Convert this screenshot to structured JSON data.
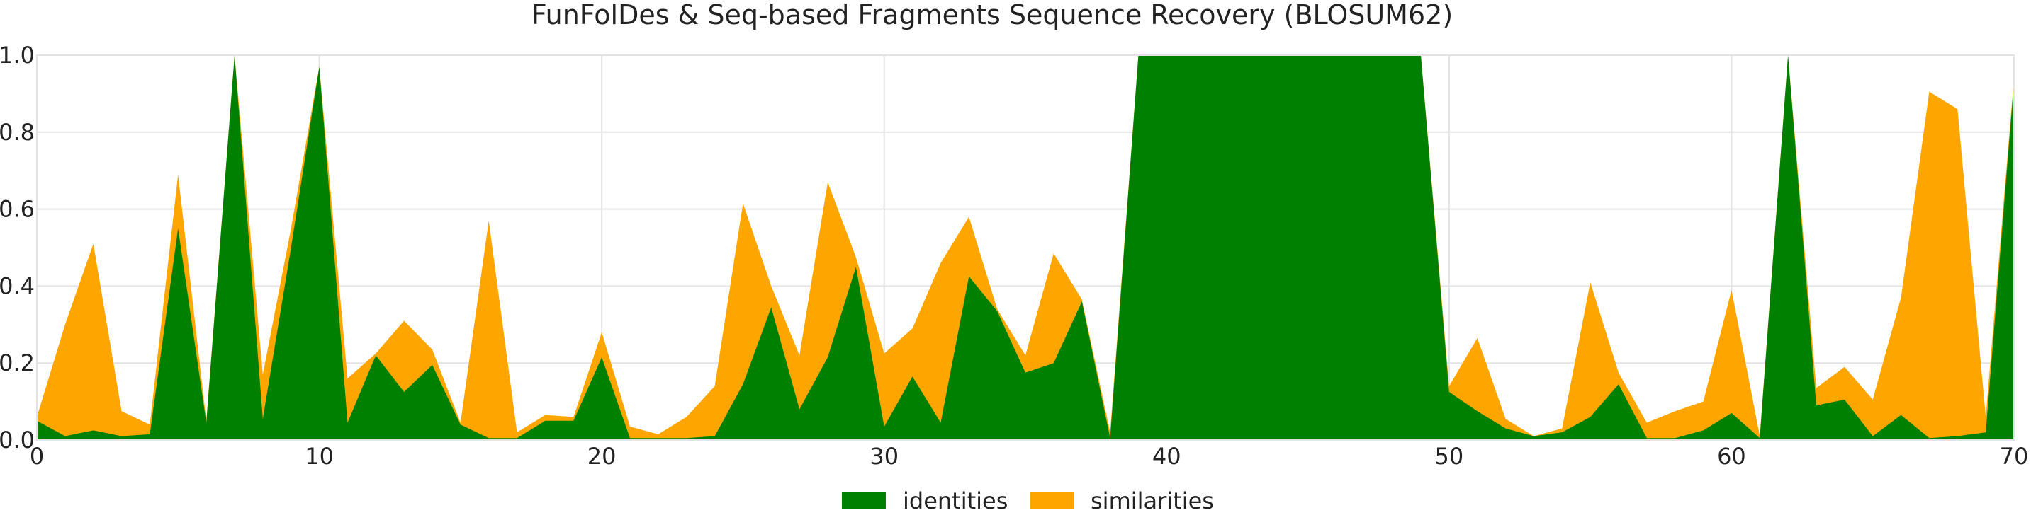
{
  "chart_data": {
    "type": "area",
    "title": "FunFolDes & Seq-based Fragments Sequence Recovery (BLOSUM62)",
    "xlabel": "",
    "ylabel": "",
    "xlim": [
      0,
      70
    ],
    "ylim": [
      0,
      1.0
    ],
    "x_ticks": [
      0,
      10,
      20,
      30,
      40,
      50,
      60,
      70
    ],
    "x_tick_labels": [
      "0",
      "10",
      "20",
      "30",
      "40",
      "50",
      "60",
      "70"
    ],
    "y_ticks": [
      0.0,
      0.2,
      0.4,
      0.6,
      0.8,
      1.0
    ],
    "y_tick_labels": [
      "0.0",
      "0.2",
      "0.4",
      "0.6",
      "0.8",
      "1.0"
    ],
    "grid": true,
    "legend_position": "bottom-center",
    "x": [
      0,
      1,
      2,
      3,
      4,
      5,
      6,
      7,
      8,
      9,
      10,
      11,
      12,
      13,
      14,
      15,
      16,
      17,
      18,
      19,
      20,
      21,
      22,
      23,
      24,
      25,
      26,
      27,
      28,
      29,
      30,
      31,
      32,
      33,
      34,
      35,
      36,
      37,
      38,
      39,
      40,
      41,
      42,
      43,
      44,
      45,
      46,
      47,
      48,
      49,
      50,
      51,
      52,
      53,
      54,
      55,
      56,
      57,
      58,
      59,
      60,
      61,
      62,
      63,
      64,
      65,
      66,
      67,
      68,
      69,
      70
    ],
    "series": [
      {
        "name": "similarities",
        "color": "#ffa500",
        "values": [
          0.06,
          0.3,
          0.51,
          0.075,
          0.04,
          0.69,
          0.05,
          1.0,
          0.17,
          0.55,
          0.97,
          0.16,
          0.225,
          0.31,
          0.235,
          0.045,
          0.57,
          0.02,
          0.065,
          0.06,
          0.28,
          0.035,
          0.015,
          0.06,
          0.14,
          0.615,
          0.4,
          0.22,
          0.67,
          0.475,
          0.225,
          0.29,
          0.46,
          0.58,
          0.34,
          0.22,
          0.485,
          0.365,
          0.02,
          1.0,
          1.0,
          1.0,
          1.0,
          1.0,
          1.0,
          1.0,
          1.0,
          1.0,
          1.0,
          1.0,
          0.14,
          0.265,
          0.055,
          0.01,
          0.03,
          0.41,
          0.175,
          0.045,
          0.075,
          0.1,
          0.39,
          0.01,
          1.0,
          0.135,
          0.19,
          0.105,
          0.37,
          0.905,
          0.86,
          0.06,
          0.94
        ]
      },
      {
        "name": "identities",
        "color": "#008000",
        "values": [
          0.05,
          0.01,
          0.025,
          0.01,
          0.015,
          0.55,
          0.045,
          1.0,
          0.055,
          0.5,
          0.97,
          0.045,
          0.22,
          0.125,
          0.195,
          0.04,
          0.005,
          0.005,
          0.05,
          0.05,
          0.215,
          0.005,
          0.005,
          0.005,
          0.01,
          0.145,
          0.345,
          0.08,
          0.215,
          0.45,
          0.035,
          0.165,
          0.045,
          0.425,
          0.335,
          0.175,
          0.2,
          0.36,
          0.005,
          1.0,
          1.0,
          1.0,
          1.0,
          1.0,
          1.0,
          1.0,
          1.0,
          1.0,
          1.0,
          1.0,
          0.125,
          0.075,
          0.03,
          0.01,
          0.02,
          0.06,
          0.145,
          0.005,
          0.005,
          0.025,
          0.07,
          0.005,
          1.0,
          0.09,
          0.105,
          0.01,
          0.065,
          0.005,
          0.01,
          0.02,
          0.93
        ]
      }
    ],
    "legend": [
      "identities",
      "similarities"
    ]
  }
}
